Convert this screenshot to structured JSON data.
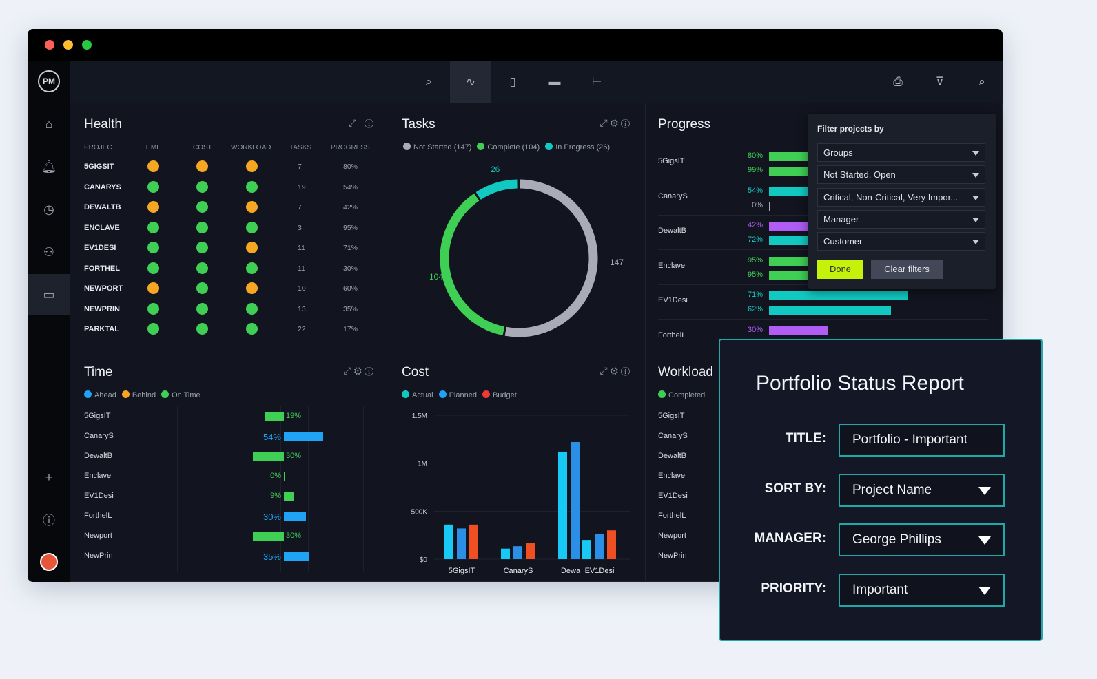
{
  "colors": {
    "orange": "#f5a623",
    "green": "#3fcf55",
    "teal": "#12c9c2",
    "gray": "#a9acb6",
    "blue": "#1ea3f5",
    "purple": "#b05cf5",
    "red": "#f04e23",
    "accent": "#1fa8a8",
    "done": "#c5f20a"
  },
  "window": {
    "logo": "PM"
  },
  "sidebar": {
    "items": [
      "home-icon",
      "bell-icon",
      "clock-icon",
      "users-icon",
      "briefcase-icon",
      "plus-icon",
      "help-icon",
      "avatar"
    ]
  },
  "toolbar": {
    "icons": [
      "zoom-scan-icon",
      "pulse-icon",
      "clipboard-icon",
      "bar-icon",
      "hierarchy-icon"
    ],
    "right": [
      "print-icon",
      "clear-filter-icon",
      "search-icon"
    ]
  },
  "health": {
    "title": "Health",
    "columns": [
      "PROJECT",
      "TIME",
      "COST",
      "WORKLOAD",
      "TASKS",
      "PROGRESS"
    ],
    "rows": [
      {
        "name": "5GIGSIT",
        "time": "orange",
        "cost": "orange",
        "workload": "orange",
        "tasks": "7",
        "progress": "80%"
      },
      {
        "name": "CANARYS",
        "time": "green",
        "cost": "green",
        "workload": "green",
        "tasks": "19",
        "progress": "54%"
      },
      {
        "name": "DEWALTB",
        "time": "orange",
        "cost": "green",
        "workload": "orange",
        "tasks": "7",
        "progress": "42%"
      },
      {
        "name": "ENCLAVE",
        "time": "green",
        "cost": "green",
        "workload": "green",
        "tasks": "3",
        "progress": "95%"
      },
      {
        "name": "EV1DESI",
        "time": "green",
        "cost": "green",
        "workload": "orange",
        "tasks": "11",
        "progress": "71%"
      },
      {
        "name": "FORTHEL",
        "time": "green",
        "cost": "green",
        "workload": "green",
        "tasks": "11",
        "progress": "30%"
      },
      {
        "name": "NEWPORT",
        "time": "orange",
        "cost": "green",
        "workload": "orange",
        "tasks": "10",
        "progress": "60%"
      },
      {
        "name": "NEWPRIN",
        "time": "green",
        "cost": "green",
        "workload": "green",
        "tasks": "13",
        "progress": "35%"
      },
      {
        "name": "PARKTAL",
        "time": "green",
        "cost": "green",
        "workload": "green",
        "tasks": "22",
        "progress": "17%"
      }
    ]
  },
  "tasks": {
    "title": "Tasks",
    "legend": [
      "Not Started (147)",
      "Complete (104)",
      "In Progress (26)"
    ],
    "segments": [
      {
        "value": 147,
        "color": "gray",
        "label": "147"
      },
      {
        "value": 104,
        "color": "green",
        "label": "104"
      },
      {
        "value": 26,
        "color": "teal",
        "label": "26"
      }
    ]
  },
  "progress": {
    "title": "Progress",
    "rows": [
      {
        "name": "5GigsIT",
        "bars": [
          {
            "value": 80,
            "label": "80%",
            "color": "green"
          },
          {
            "value": 99,
            "label": "99%",
            "color": "green"
          }
        ]
      },
      {
        "name": "CanaryS",
        "bars": [
          {
            "value": 54,
            "label": "54%",
            "color": "teal"
          },
          {
            "value": 0,
            "label": "0%",
            "color": "gray"
          }
        ]
      },
      {
        "name": "DewaltB",
        "bars": [
          {
            "value": 42,
            "label": "42%",
            "color": "purple"
          },
          {
            "value": 72,
            "label": "72%",
            "color": "teal"
          }
        ]
      },
      {
        "name": "Enclave",
        "bars": [
          {
            "value": 95,
            "label": "95%",
            "color": "green"
          },
          {
            "value": 95,
            "label": "95%",
            "color": "green"
          }
        ]
      },
      {
        "name": "EV1Desi",
        "bars": [
          {
            "value": 71,
            "label": "71%",
            "color": "teal"
          },
          {
            "value": 62,
            "label": "62%",
            "color": "teal"
          }
        ]
      },
      {
        "name": "ForthelL",
        "bars": [
          {
            "value": 30,
            "label": "30%",
            "color": "purple"
          }
        ]
      }
    ]
  },
  "time": {
    "title": "Time",
    "legend": [
      "Ahead",
      "Behind",
      "On Time"
    ],
    "rows": [
      {
        "name": "5GigsIT",
        "value": 19,
        "label": "19%",
        "color": "green",
        "side": "left"
      },
      {
        "name": "CanaryS",
        "value": 54,
        "label": "54%",
        "color": "blue",
        "side": "right"
      },
      {
        "name": "DewaltB",
        "value": 30,
        "label": "30%",
        "color": "green",
        "side": "left"
      },
      {
        "name": "Enclave",
        "value": 0,
        "label": "0%",
        "color": "green",
        "side": "right"
      },
      {
        "name": "EV1Desi",
        "value": 9,
        "label": "9%",
        "color": "green",
        "side": "right"
      },
      {
        "name": "ForthelL",
        "value": 30,
        "label": "30%",
        "color": "blue",
        "side": "right"
      },
      {
        "name": "Newport",
        "value": 30,
        "label": "30%",
        "color": "green",
        "side": "left"
      },
      {
        "name": "NewPrin",
        "value": 35,
        "label": "35%",
        "color": "blue",
        "side": "right"
      }
    ]
  },
  "chart_data": {
    "type": "bar",
    "title": "Cost",
    "categories": [
      "5GigsIT",
      "CanaryS",
      "Dewa",
      "EV1Desi"
    ],
    "series": [
      {
        "name": "Actual",
        "color": "#19c9f5",
        "values": [
          360000,
          110000,
          1120000,
          200000
        ]
      },
      {
        "name": "Planned",
        "color": "#2b8fe6",
        "values": [
          320000,
          135000,
          1220000,
          260000
        ]
      },
      {
        "name": "Budget",
        "color": "#f04e23",
        "values": [
          360000,
          165000,
          null,
          300000
        ]
      }
    ],
    "yticks": [
      "$0",
      "500K",
      "1M",
      "1.5M"
    ],
    "ylim": [
      0,
      1500000
    ],
    "grid": true,
    "legend": "top-left"
  },
  "workload": {
    "title": "Workload",
    "legend": [
      "Completed"
    ],
    "rows": [
      "5GigsIT",
      "CanaryS",
      "DewaltB",
      "Enclave",
      "EV1Desi",
      "ForthelL",
      "Newport",
      "NewPrin"
    ]
  },
  "filter": {
    "title": "Filter projects by",
    "selects": [
      "Groups",
      "Not Started, Open",
      "Critical, Non-Critical, Very Impor...",
      "Manager",
      "Customer"
    ],
    "done": "Done",
    "clear": "Clear filters"
  },
  "report": {
    "title": "Portfolio Status Report",
    "fields": [
      {
        "label": "TITLE:",
        "value": "Portfolio - Important",
        "dropdown": false
      },
      {
        "label": "SORT BY:",
        "value": "Project Name",
        "dropdown": true
      },
      {
        "label": "MANAGER:",
        "value": "George Phillips",
        "dropdown": true
      },
      {
        "label": "PRIORITY:",
        "value": "Important",
        "dropdown": true
      }
    ]
  }
}
